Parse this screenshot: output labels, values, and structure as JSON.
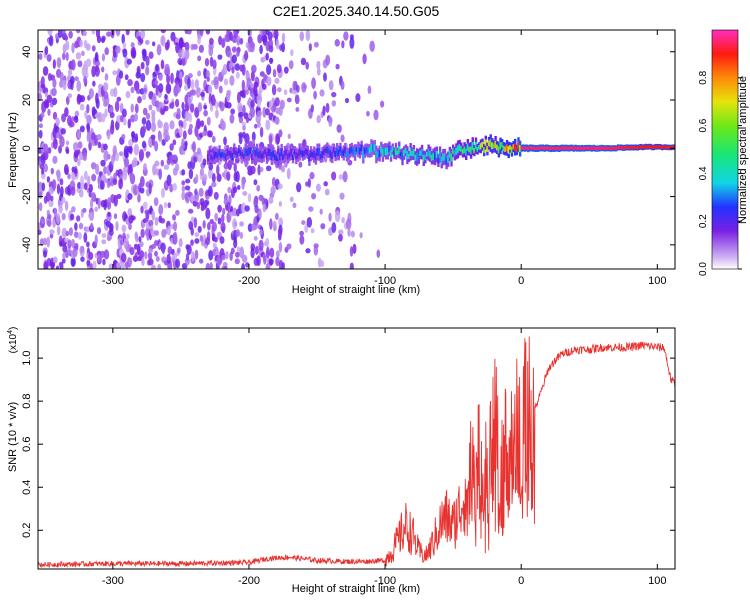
{
  "figure_title": "C2E1.2025.340.14.50.G05",
  "chart_data": [
    {
      "type": "heatmap",
      "title": "",
      "xlabel": "Height of straight line (km)",
      "ylabel": "Frequency (Hz)",
      "xlim": [
        -355,
        113
      ],
      "ylim": [
        -50,
        49
      ],
      "xticks": [
        -300,
        -200,
        -100,
        0,
        100
      ],
      "xtick_labels": [
        "-300",
        "-200",
        "-100",
        "0",
        "100"
      ],
      "yticks": [
        -40,
        -20,
        0,
        20,
        40
      ],
      "ytick_labels": [
        "-40",
        "-20",
        "0",
        "20",
        "40"
      ],
      "colorbar": {
        "label": "Normalized spectral amplitude",
        "range": [
          0,
          1
        ],
        "ticks": [
          0.0,
          0.2,
          0.4,
          0.6,
          0.8
        ],
        "tick_labels": [
          "0.0",
          "0.2",
          "0.4",
          "0.6",
          "0.8"
        ]
      },
      "signal_ridge": {
        "x": [
          -230,
          -200,
          -170,
          -140,
          -110,
          -90,
          -70,
          -55,
          -45,
          -35,
          -25,
          -18,
          -10,
          0,
          30,
          60,
          90,
          113
        ],
        "center_hz": [
          -3,
          -2,
          -3,
          -2,
          -1,
          -2,
          -3,
          -4,
          -1,
          0,
          1,
          1,
          0,
          0,
          0,
          0,
          0.5,
          0.5
        ],
        "peak_amplitude": [
          0.25,
          0.3,
          0.25,
          0.3,
          0.4,
          0.45,
          0.5,
          0.45,
          0.55,
          0.6,
          0.7,
          0.75,
          0.8,
          0.95,
          0.95,
          0.95,
          0.9,
          0.9
        ]
      }
    },
    {
      "type": "line",
      "title": "",
      "xlabel": "Height of straight line (km)",
      "ylabel": "SNR (10 * v/v)",
      "y_scale_label": "(x10",
      "y_scale_exponent": "4",
      "xlim": [
        -355,
        113
      ],
      "ylim": [
        0.02,
        1.14
      ],
      "xticks": [
        -300,
        -200,
        -100,
        0,
        100
      ],
      "xtick_labels": [
        "-300",
        "-200",
        "-100",
        "0",
        "100"
      ],
      "yticks": [
        0.2,
        0.4,
        0.6,
        0.8,
        1.0
      ],
      "ytick_labels": [
        "0.2",
        "0.4",
        "0.6",
        "0.8",
        "1.0"
      ],
      "color": "#e8322f",
      "series": [
        {
          "name": "SNR",
          "x": [
            -355,
            -300,
            -250,
            -200,
            -185,
            -170,
            -150,
            -130,
            -115,
            -100,
            -95,
            -90,
            -85,
            -80,
            -75,
            -70,
            -65,
            -60,
            -55,
            -50,
            -45,
            -40,
            -35,
            -30,
            -25,
            -20,
            -15,
            -10,
            -5,
            0,
            5,
            10,
            15,
            20,
            25,
            30,
            40,
            50,
            60,
            70,
            80,
            90,
            100,
            105,
            110,
            113
          ],
          "y": [
            0.04,
            0.045,
            0.045,
            0.05,
            0.07,
            0.075,
            0.06,
            0.055,
            0.055,
            0.06,
            0.1,
            0.16,
            0.22,
            0.18,
            0.1,
            0.08,
            0.14,
            0.22,
            0.26,
            0.22,
            0.3,
            0.4,
            0.55,
            0.5,
            0.45,
            0.65,
            0.6,
            0.55,
            0.62,
            0.7,
            0.72,
            0.76,
            0.85,
            0.95,
            0.99,
            1.02,
            1.04,
            1.04,
            1.05,
            1.05,
            1.05,
            1.06,
            1.05,
            1.05,
            0.9,
            0.88
          ]
        }
      ]
    }
  ]
}
